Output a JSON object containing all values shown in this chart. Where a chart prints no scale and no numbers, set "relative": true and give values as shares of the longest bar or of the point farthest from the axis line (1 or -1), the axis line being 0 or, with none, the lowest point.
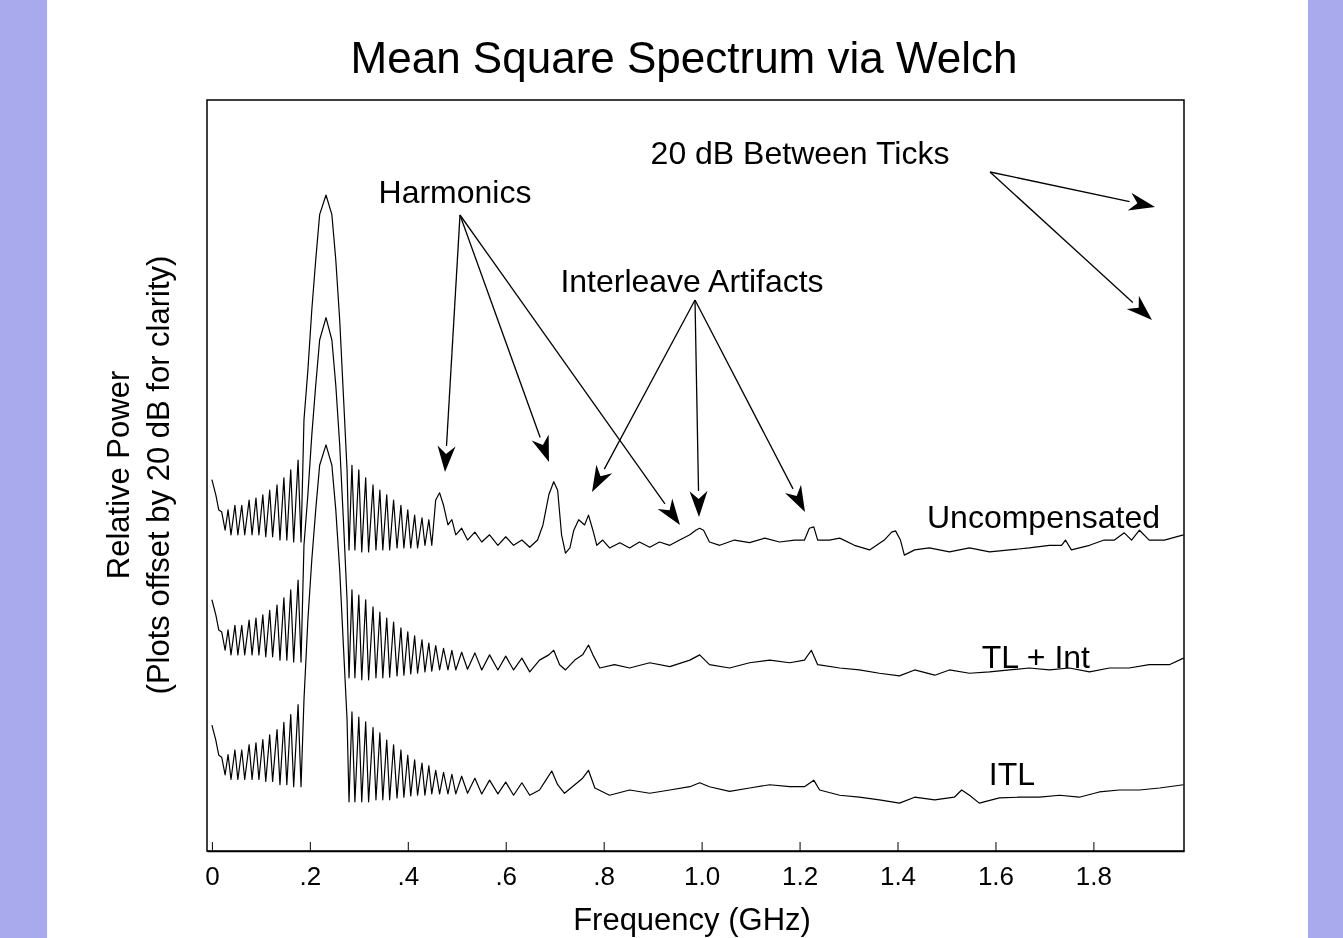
{
  "chart_data": {
    "type": "line",
    "title": "Mean Square Spectrum via Welch",
    "xlabel": "Frequency (GHz)",
    "ylabel": "Relative Power\n(Plots offset by 20 dB for clarity)",
    "relative": true,
    "legend": false,
    "grid": false,
    "xlim": [
      -0.01,
      1.985
    ],
    "xticks": [
      {
        "value": 0,
        "label": "0"
      },
      {
        "value": 0.2,
        "label": ".2"
      },
      {
        "value": 0.4,
        "label": ".4"
      },
      {
        "value": 0.6,
        "label": ".6"
      },
      {
        "value": 0.8,
        "label": ".8"
      },
      {
        "value": 1.0,
        "label": "1.0"
      },
      {
        "value": 1.2,
        "label": "1.2"
      },
      {
        "value": 1.4,
        "label": "1.4"
      },
      {
        "value": 1.6,
        "label": "1.6"
      },
      {
        "value": 1.8,
        "label": "1.8"
      }
    ],
    "annotations": [
      "20 dB Between Ticks",
      "Harmonics",
      "Interleave Artifacts"
    ],
    "series": [
      {
        "name": "Uncompensated",
        "color": "#000000",
        "x": [
          0,
          0.008,
          0.014,
          0.02,
          0.027,
          0.033,
          0.039,
          0.047,
          0.053,
          0.061,
          0.067,
          0.076,
          0.082,
          0.09,
          0.096,
          0.104,
          0.11,
          0.118,
          0.124,
          0.133,
          0.139,
          0.147,
          0.153,
          0.161,
          0.167,
          0.176,
          0.182,
          0.188,
          0.196,
          0.204,
          0.212,
          0.22,
          0.233,
          0.245,
          0.253,
          0.261,
          0.269,
          0.276,
          0.28,
          0.286,
          0.292,
          0.3,
          0.306,
          0.314,
          0.32,
          0.329,
          0.335,
          0.343,
          0.349,
          0.357,
          0.363,
          0.371,
          0.378,
          0.386,
          0.392,
          0.4,
          0.406,
          0.414,
          0.42,
          0.429,
          0.435,
          0.443,
          0.449,
          0.457,
          0.465,
          0.473,
          0.482,
          0.49,
          0.498,
          0.51,
          0.522,
          0.537,
          0.551,
          0.567,
          0.584,
          0.6,
          0.616,
          0.633,
          0.649,
          0.665,
          0.676,
          0.688,
          0.698,
          0.706,
          0.714,
          0.722,
          0.731,
          0.739,
          0.749,
          0.761,
          0.769,
          0.778,
          0.786,
          0.798,
          0.812,
          0.833,
          0.853,
          0.873,
          0.894,
          0.914,
          0.935,
          0.955,
          0.976,
          0.988,
          0.996,
          1.004,
          1.016,
          1.037,
          1.067,
          1.098,
          1.129,
          1.159,
          1.19,
          1.21,
          1.22,
          1.229,
          1.237,
          1.261,
          1.282,
          1.312,
          1.343,
          1.373,
          1.388,
          1.396,
          1.406,
          1.414,
          1.435,
          1.465,
          1.506,
          1.547,
          1.588,
          1.629,
          1.669,
          1.71,
          1.735,
          1.743,
          1.755,
          1.792,
          1.822,
          1.843,
          1.863,
          1.878,
          1.894,
          1.914,
          1.945,
          1.984
        ],
        "values": [
          0.566,
          0.543,
          0.52,
          0.517,
          0.489,
          0.52,
          0.482,
          0.527,
          0.482,
          0.527,
          0.482,
          0.535,
          0.482,
          0.538,
          0.482,
          0.543,
          0.479,
          0.55,
          0.479,
          0.558,
          0.474,
          0.569,
          0.474,
          0.581,
          0.471,
          0.596,
          0.471,
          0.657,
          0.733,
          0.825,
          0.901,
          0.97,
          1,
          0.97,
          0.901,
          0.809,
          0.688,
          0.581,
          0.459,
          0.588,
          0.459,
          0.581,
          0.456,
          0.569,
          0.456,
          0.558,
          0.459,
          0.55,
          0.459,
          0.543,
          0.459,
          0.535,
          0.462,
          0.527,
          0.462,
          0.52,
          0.462,
          0.512,
          0.462,
          0.508,
          0.466,
          0.505,
          0.466,
          0.535,
          0.546,
          0.527,
          0.497,
          0.505,
          0.482,
          0.492,
          0.474,
          0.486,
          0.471,
          0.482,
          0.466,
          0.479,
          0.466,
          0.474,
          0.463,
          0.474,
          0.497,
          0.543,
          0.563,
          0.55,
          0.482,
          0.454,
          0.462,
          0.489,
          0.505,
          0.497,
          0.512,
          0.489,
          0.466,
          0.474,
          0.462,
          0.47,
          0.462,
          0.471,
          0.463,
          0.471,
          0.466,
          0.474,
          0.482,
          0.489,
          0.492,
          0.489,
          0.471,
          0.466,
          0.474,
          0.47,
          0.477,
          0.471,
          0.474,
          0.474,
          0.492,
          0.494,
          0.474,
          0.474,
          0.477,
          0.466,
          0.459,
          0.474,
          0.486,
          0.488,
          0.474,
          0.451,
          0.459,
          0.462,
          0.456,
          0.462,
          0.456,
          0.459,
          0.462,
          0.466,
          0.466,
          0.474,
          0.459,
          0.466,
          0.474,
          0.474,
          0.485,
          0.474,
          0.489,
          0.474,
          0.474,
          0.482
        ]
      },
      {
        "name": "TL + Int",
        "color": "#000000",
        "x": [
          0,
          0.008,
          0.014,
          0.02,
          0.027,
          0.033,
          0.039,
          0.047,
          0.053,
          0.061,
          0.067,
          0.076,
          0.082,
          0.09,
          0.096,
          0.104,
          0.11,
          0.118,
          0.124,
          0.133,
          0.139,
          0.147,
          0.153,
          0.161,
          0.167,
          0.176,
          0.182,
          0.188,
          0.196,
          0.204,
          0.212,
          0.22,
          0.233,
          0.245,
          0.253,
          0.261,
          0.269,
          0.276,
          0.28,
          0.286,
          0.292,
          0.3,
          0.306,
          0.314,
          0.32,
          0.329,
          0.335,
          0.343,
          0.349,
          0.357,
          0.363,
          0.371,
          0.378,
          0.386,
          0.392,
          0.4,
          0.406,
          0.414,
          0.42,
          0.429,
          0.435,
          0.443,
          0.449,
          0.457,
          0.465,
          0.473,
          0.482,
          0.49,
          0.498,
          0.51,
          0.522,
          0.537,
          0.551,
          0.567,
          0.584,
          0.6,
          0.616,
          0.633,
          0.649,
          0.669,
          0.688,
          0.698,
          0.71,
          0.722,
          0.741,
          0.757,
          0.769,
          0.778,
          0.792,
          0.822,
          0.853,
          0.894,
          0.935,
          0.976,
          0.996,
          1.016,
          1.057,
          1.098,
          1.139,
          1.18,
          1.21,
          1.224,
          1.237,
          1.282,
          1.322,
          1.363,
          1.404,
          1.435,
          1.476,
          1.506,
          1.547,
          1.588,
          1.629,
          1.669,
          1.71,
          1.751,
          1.792,
          1.833,
          1.873,
          1.914,
          1.955,
          1.984
        ],
        "values": [
          0.383,
          0.36,
          0.337,
          0.334,
          0.306,
          0.337,
          0.299,
          0.344,
          0.299,
          0.344,
          0.299,
          0.352,
          0.299,
          0.355,
          0.299,
          0.36,
          0.296,
          0.367,
          0.296,
          0.375,
          0.291,
          0.386,
          0.291,
          0.398,
          0.288,
          0.413,
          0.288,
          0.466,
          0.543,
          0.634,
          0.71,
          0.779,
          0.813,
          0.779,
          0.71,
          0.619,
          0.497,
          0.383,
          0.264,
          0.398,
          0.264,
          0.39,
          0.261,
          0.383,
          0.261,
          0.372,
          0.264,
          0.364,
          0.264,
          0.355,
          0.265,
          0.349,
          0.267,
          0.34,
          0.268,
          0.334,
          0.27,
          0.328,
          0.271,
          0.322,
          0.273,
          0.317,
          0.274,
          0.313,
          0.276,
          0.309,
          0.276,
          0.306,
          0.276,
          0.303,
          0.277,
          0.302,
          0.276,
          0.299,
          0.276,
          0.297,
          0.276,
          0.294,
          0.273,
          0.291,
          0.299,
          0.306,
          0.284,
          0.276,
          0.291,
          0.299,
          0.314,
          0.299,
          0.279,
          0.284,
          0.279,
          0.287,
          0.281,
          0.291,
          0.299,
          0.284,
          0.279,
          0.287,
          0.291,
          0.287,
          0.291,
          0.306,
          0.284,
          0.279,
          0.276,
          0.271,
          0.267,
          0.276,
          0.268,
          0.276,
          0.271,
          0.273,
          0.276,
          0.279,
          0.276,
          0.279,
          0.273,
          0.279,
          0.279,
          0.284,
          0.284,
          0.294
        ]
      },
      {
        "name": "ITL",
        "color": "#000000",
        "x": [
          0,
          0.008,
          0.014,
          0.02,
          0.027,
          0.033,
          0.039,
          0.047,
          0.053,
          0.061,
          0.067,
          0.076,
          0.082,
          0.09,
          0.096,
          0.104,
          0.11,
          0.118,
          0.124,
          0.133,
          0.139,
          0.147,
          0.153,
          0.161,
          0.167,
          0.176,
          0.182,
          0.188,
          0.196,
          0.204,
          0.212,
          0.22,
          0.233,
          0.245,
          0.253,
          0.261,
          0.269,
          0.276,
          0.28,
          0.286,
          0.292,
          0.3,
          0.306,
          0.314,
          0.32,
          0.329,
          0.335,
          0.343,
          0.349,
          0.357,
          0.363,
          0.371,
          0.378,
          0.386,
          0.392,
          0.4,
          0.406,
          0.414,
          0.42,
          0.429,
          0.435,
          0.443,
          0.449,
          0.457,
          0.465,
          0.473,
          0.482,
          0.49,
          0.498,
          0.51,
          0.522,
          0.537,
          0.551,
          0.567,
          0.584,
          0.6,
          0.616,
          0.633,
          0.649,
          0.669,
          0.682,
          0.694,
          0.706,
          0.72,
          0.741,
          0.757,
          0.769,
          0.782,
          0.812,
          0.853,
          0.894,
          0.935,
          0.976,
          0.996,
          1.016,
          1.057,
          1.098,
          1.139,
          1.18,
          1.21,
          1.229,
          1.241,
          1.282,
          1.322,
          1.363,
          1.404,
          1.435,
          1.476,
          1.516,
          1.531,
          1.547,
          1.567,
          1.608,
          1.649,
          1.69,
          1.731,
          1.771,
          1.812,
          1.853,
          1.894,
          1.935,
          1.984
        ],
        "values": [
          0.192,
          0.169,
          0.146,
          0.143,
          0.116,
          0.147,
          0.109,
          0.154,
          0.109,
          0.154,
          0.109,
          0.162,
          0.109,
          0.165,
          0.109,
          0.17,
          0.106,
          0.177,
          0.106,
          0.185,
          0.101,
          0.196,
          0.101,
          0.208,
          0.098,
          0.223,
          0.098,
          0.23,
          0.352,
          0.444,
          0.52,
          0.588,
          0.619,
          0.588,
          0.52,
          0.428,
          0.306,
          0.2,
          0.075,
          0.212,
          0.075,
          0.204,
          0.075,
          0.197,
          0.075,
          0.188,
          0.078,
          0.18,
          0.078,
          0.169,
          0.078,
          0.162,
          0.081,
          0.154,
          0.082,
          0.146,
          0.084,
          0.139,
          0.085,
          0.134,
          0.085,
          0.13,
          0.087,
          0.123,
          0.087,
          0.12,
          0.087,
          0.117,
          0.087,
          0.114,
          0.088,
          0.111,
          0.087,
          0.108,
          0.087,
          0.105,
          0.085,
          0.104,
          0.085,
          0.093,
          0.108,
          0.122,
          0.101,
          0.088,
          0.101,
          0.111,
          0.123,
          0.096,
          0.085,
          0.093,
          0.088,
          0.093,
          0.098,
          0.104,
          0.098,
          0.091,
          0.096,
          0.101,
          0.098,
          0.098,
          0.108,
          0.093,
          0.085,
          0.082,
          0.078,
          0.073,
          0.082,
          0.078,
          0.082,
          0.093,
          0.085,
          0.073,
          0.081,
          0.082,
          0.082,
          0.085,
          0.082,
          0.09,
          0.093,
          0.093,
          0.096,
          0.101
        ]
      }
    ]
  }
}
